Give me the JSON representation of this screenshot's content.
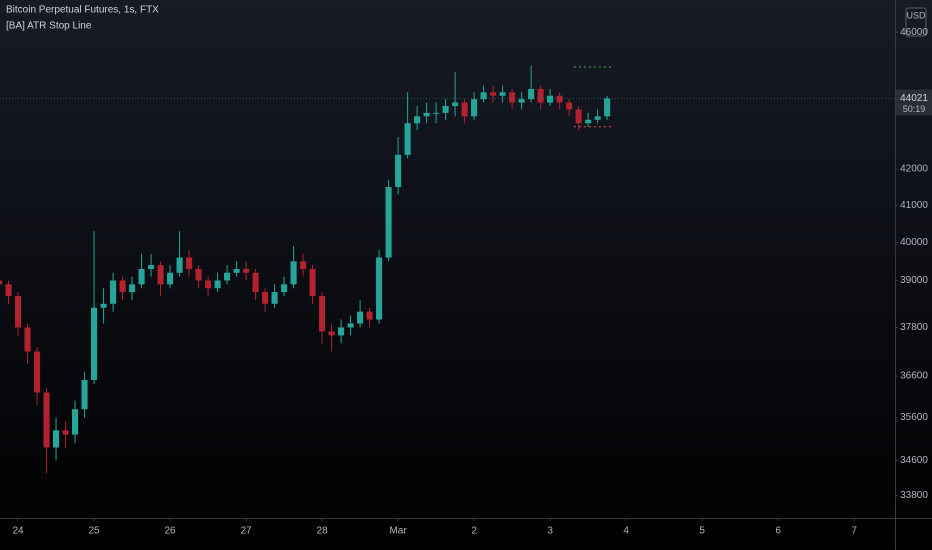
{
  "chart_data": {
    "type": "candlestick",
    "title": "Bitcoin Perpetual Futures, 1s, FTX",
    "subtitle": "[BA] ATR Stop Line",
    "currency": "USD",
    "countdown": "50:19",
    "log_scale": true,
    "up_color": "#26a69a",
    "down_color": "#b2222f",
    "open": [
      39000,
      38900,
      38600,
      37800,
      37200,
      36200,
      34900,
      35300,
      35200,
      35800,
      36500,
      38300,
      38400,
      39000,
      38700,
      38900,
      39300,
      39400,
      38900,
      39200,
      39600,
      39300,
      39000,
      38800,
      39000,
      39200,
      39300,
      39200,
      38700,
      38400,
      38700,
      38900,
      39500,
      39300,
      38600,
      37700,
      37600,
      37800,
      37900,
      38200,
      38000,
      39600,
      41500,
      42400,
      43300,
      43500,
      43600,
      43600,
      43800,
      43900,
      43500,
      44000,
      44200,
      44100,
      44200,
      43900,
      44000,
      44300,
      43900,
      44100,
      43900,
      43700,
      43300,
      43400,
      43500
    ],
    "high": [
      39200,
      39000,
      38700,
      37900,
      37300,
      36300,
      35600,
      35500,
      36000,
      36700,
      40300,
      38800,
      39200,
      39100,
      39100,
      39700,
      39700,
      39500,
      39400,
      40300,
      39800,
      39400,
      39100,
      39200,
      39400,
      39500,
      39500,
      39300,
      38800,
      38900,
      39100,
      39900,
      39700,
      39400,
      38700,
      37900,
      38000,
      38100,
      38500,
      38300,
      39800,
      41700,
      42900,
      44200,
      43800,
      43900,
      43900,
      44000,
      44800,
      44000,
      44200,
      44400,
      44400,
      44400,
      44300,
      44200,
      45000,
      44400,
      44300,
      44200,
      44000,
      43800,
      43600,
      43700,
      44100
    ],
    "low": [
      38700,
      38400,
      37600,
      36900,
      35900,
      34300,
      34600,
      34900,
      35000,
      35600,
      36400,
      37900,
      38200,
      38500,
      38500,
      38800,
      39100,
      38600,
      38800,
      39100,
      39100,
      38800,
      38600,
      38700,
      38900,
      39100,
      39000,
      38500,
      38200,
      38300,
      38600,
      38800,
      39100,
      38400,
      37400,
      37200,
      37400,
      37600,
      37800,
      37800,
      37900,
      39500,
      41300,
      42300,
      43100,
      43300,
      43300,
      43400,
      43500,
      43300,
      43400,
      43900,
      43900,
      43900,
      43700,
      43700,
      43900,
      43700,
      43800,
      43700,
      43500,
      43100,
      43200,
      43300,
      43400
    ],
    "close": [
      38900,
      38600,
      37800,
      37200,
      36200,
      34900,
      35300,
      35200,
      35800,
      36500,
      38300,
      38400,
      39000,
      38700,
      38900,
      39300,
      39400,
      38900,
      39200,
      39600,
      39300,
      39000,
      38800,
      39000,
      39200,
      39300,
      39200,
      38700,
      38400,
      38700,
      38900,
      39500,
      39300,
      38600,
      37700,
      37600,
      37800,
      37900,
      38200,
      38000,
      39600,
      41500,
      42400,
      43300,
      43500,
      43600,
      43600,
      43800,
      43900,
      43500,
      44000,
      44200,
      44100,
      44200,
      43900,
      44000,
      44300,
      43900,
      44100,
      43900,
      43700,
      43300,
      43400,
      43500,
      44021
    ],
    "stop_line": {
      "upper": 44950,
      "lower": 43200,
      "upper_color": "#4caf50",
      "lower_color": "#ef5350",
      "from": 61,
      "to": 64
    },
    "xlim": [
      0.1,
      94.3
    ],
    "xticks": [
      {
        "value": 2,
        "label": "24"
      },
      {
        "value": 10,
        "label": "25"
      },
      {
        "value": 18,
        "label": "26"
      },
      {
        "value": 26,
        "label": "27"
      },
      {
        "value": 34,
        "label": "28"
      },
      {
        "value": 42,
        "label": "Mar"
      },
      {
        "value": 50,
        "label": "2"
      },
      {
        "value": 58,
        "label": "3"
      },
      {
        "value": 66,
        "label": "4"
      },
      {
        "value": 74,
        "label": "5"
      },
      {
        "value": 82,
        "label": "6"
      },
      {
        "value": 90,
        "label": "7"
      }
    ],
    "ylim": [
      33300,
      47000
    ],
    "yticks": [
      33800,
      34600,
      35600,
      36600,
      37800,
      39000,
      40000,
      41000,
      42000,
      46000
    ]
  }
}
